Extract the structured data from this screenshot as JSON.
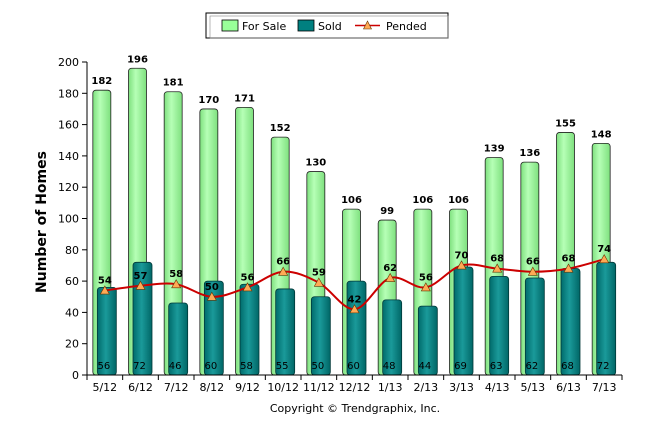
{
  "chart_data": {
    "type": "bar",
    "categories": [
      "5/12",
      "6/12",
      "7/12",
      "8/12",
      "9/12",
      "10/12",
      "11/12",
      "12/12",
      "1/13",
      "2/13",
      "3/13",
      "4/13",
      "5/13",
      "6/13",
      "7/13"
    ],
    "series": [
      {
        "name": "For Sale",
        "type": "bar",
        "color": "#99ff99",
        "values": [
          182,
          196,
          181,
          170,
          171,
          152,
          130,
          106,
          99,
          106,
          106,
          139,
          136,
          155,
          148
        ]
      },
      {
        "name": "Sold",
        "type": "bar",
        "color": "#008080",
        "values": [
          56,
          72,
          46,
          60,
          58,
          55,
          50,
          60,
          48,
          44,
          69,
          63,
          62,
          68,
          72
        ]
      },
      {
        "name": "Pended",
        "type": "line",
        "color": "#cc0000",
        "marker_color": "#ffaa55",
        "values": [
          54,
          57,
          58,
          50,
          56,
          66,
          59,
          42,
          62,
          56,
          70,
          68,
          66,
          68,
          74
        ]
      }
    ],
    "ylabel": "Number of Homes",
    "ylim": [
      0,
      200
    ],
    "yticks": [
      0,
      20,
      40,
      60,
      80,
      100,
      120,
      140,
      160,
      180,
      200
    ],
    "legend_position": "top-center",
    "grid": false
  },
  "footer": {
    "copyright": "Copyright © Trendgraphix, Inc."
  }
}
